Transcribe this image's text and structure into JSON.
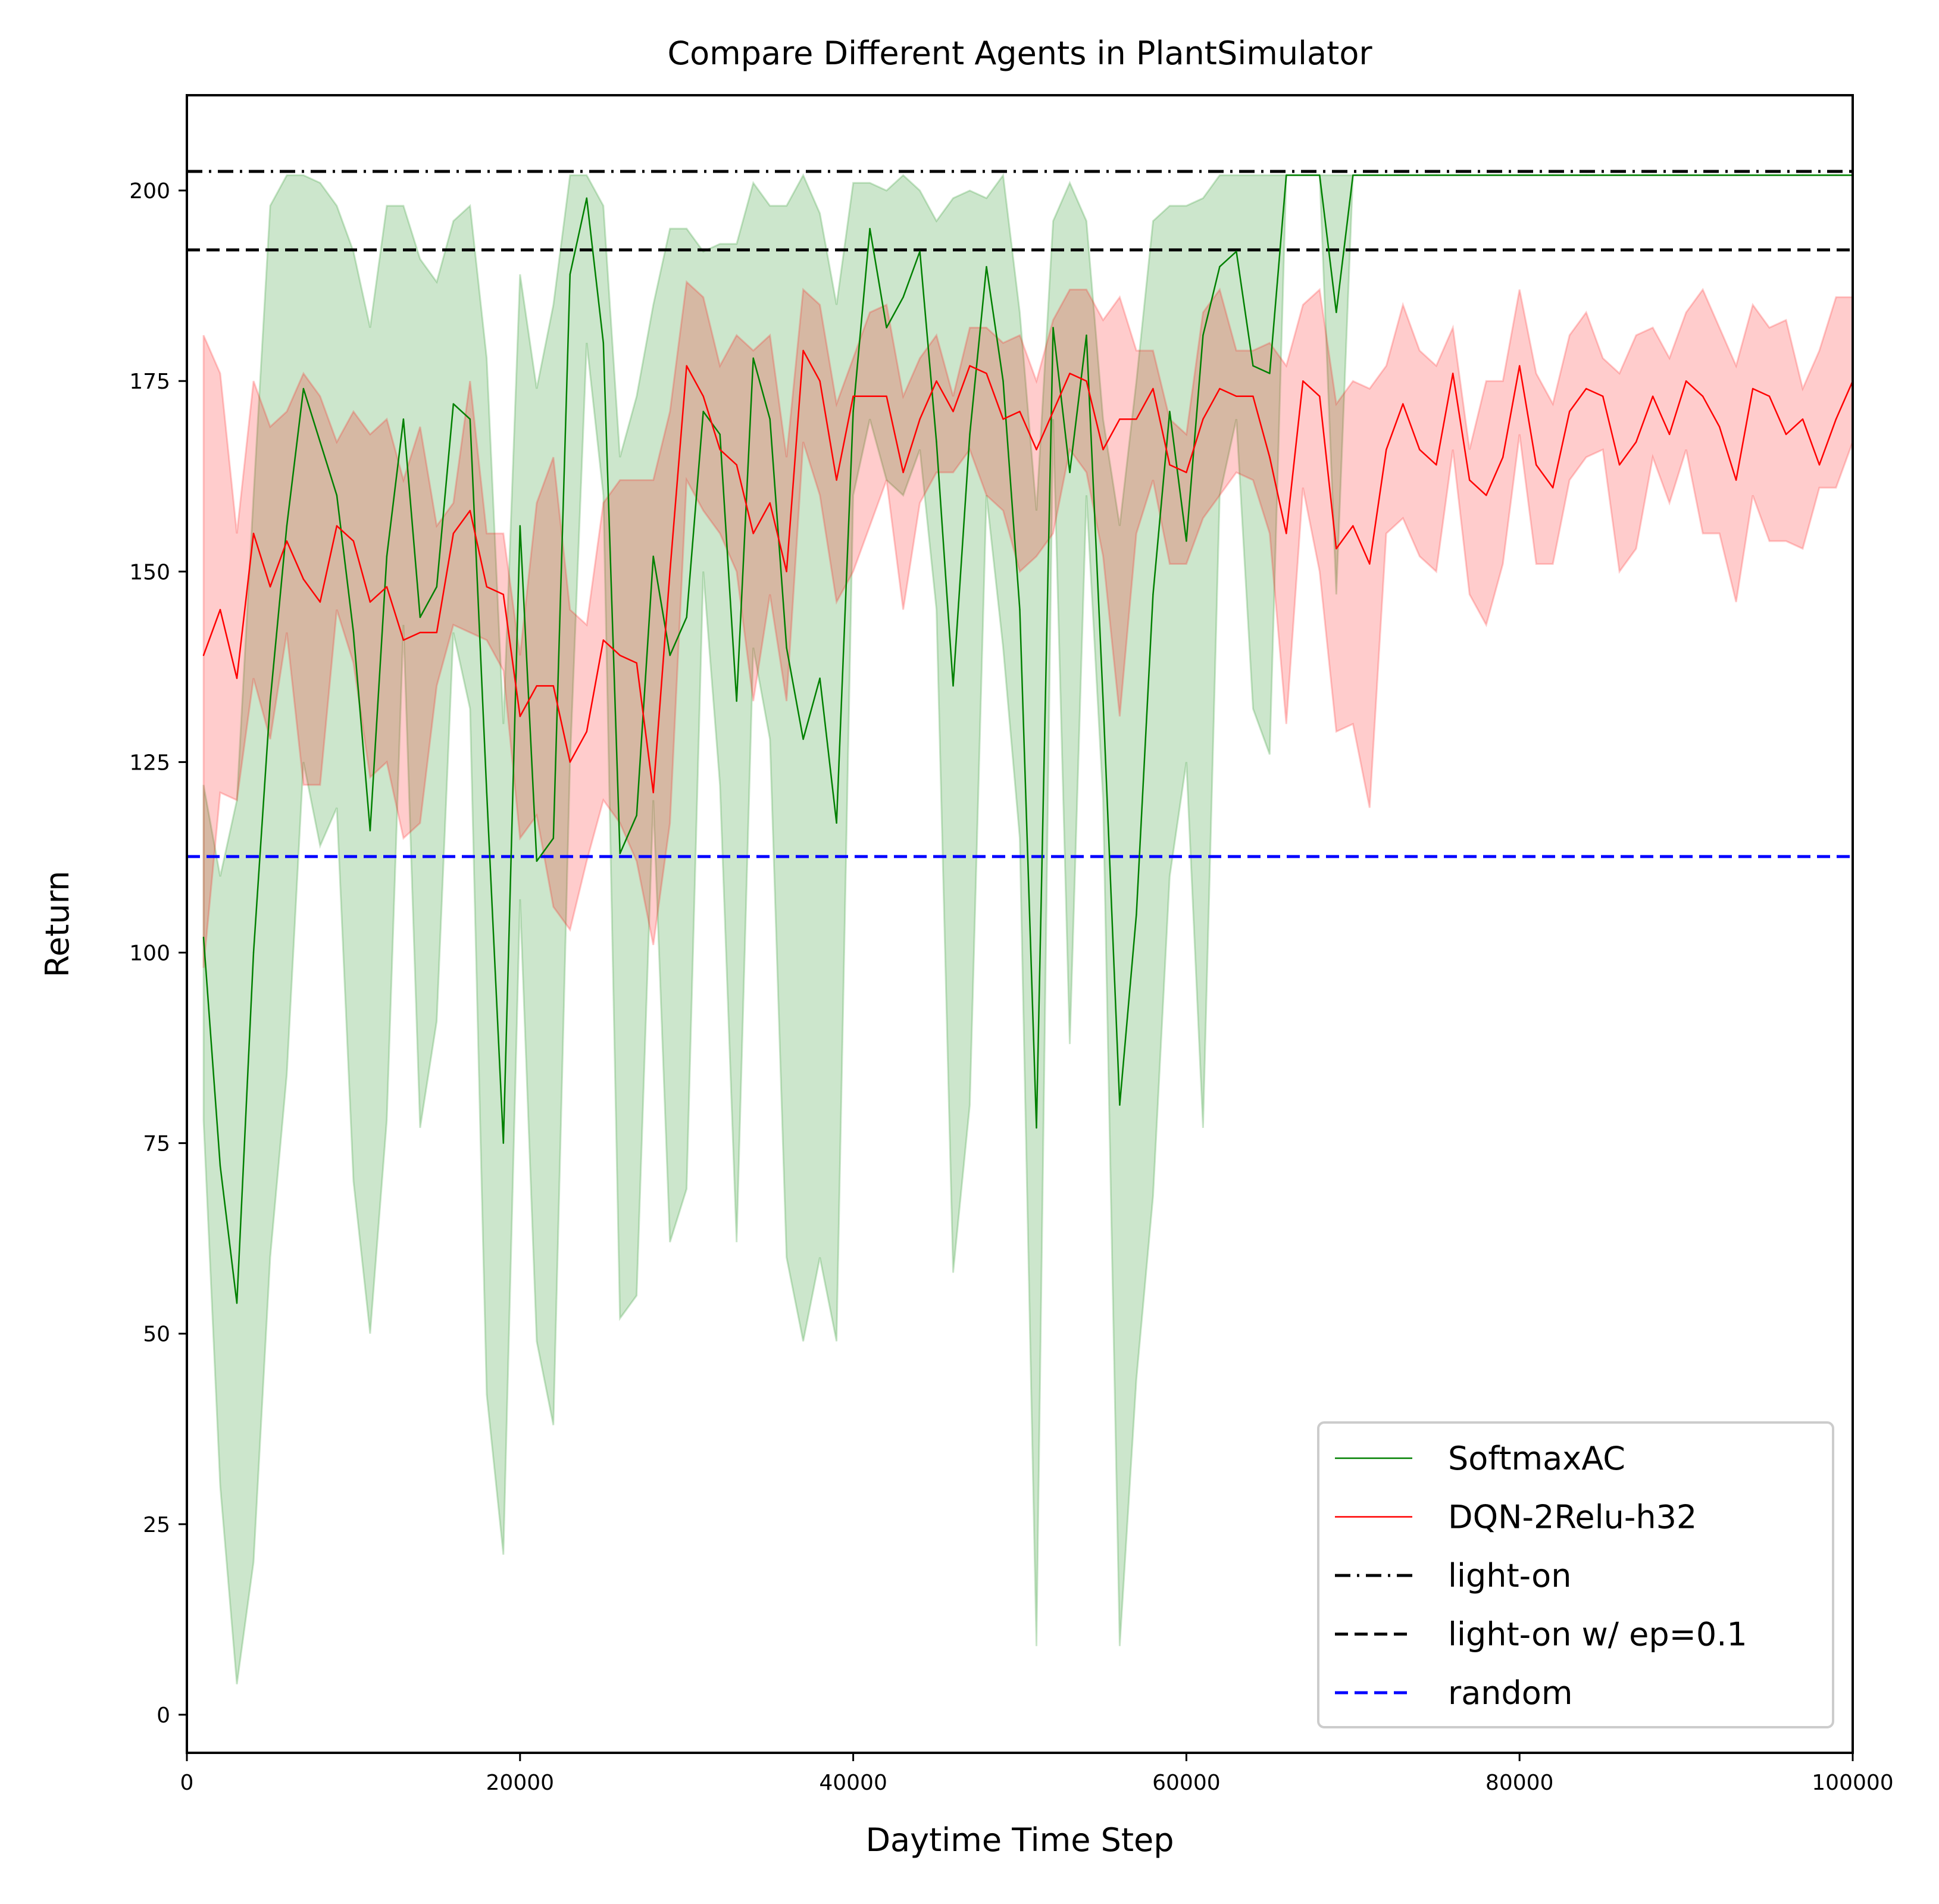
{
  "chart_data": {
    "type": "line",
    "title": "Compare Different Agents in PlantSimulator",
    "xlabel": "Daytime Time Step",
    "ylabel": "Return",
    "xlim": [
      0,
      100000
    ],
    "ylim": [
      -5,
      212.5
    ],
    "x_ticks": [
      0,
      20000,
      40000,
      60000,
      80000,
      100000
    ],
    "x_tick_labels": [
      "0",
      "20000",
      "40000",
      "60000",
      "80000",
      "100000"
    ],
    "y_ticks": [
      0,
      25,
      50,
      75,
      100,
      125,
      150,
      175,
      200
    ],
    "y_tick_labels": [
      "0",
      "25",
      "50",
      "75",
      "100",
      "125",
      "150",
      "175",
      "200"
    ],
    "grid": false,
    "legend_position": "lower-right",
    "series": [
      {
        "name": "SoftmaxAC",
        "color": "#008000",
        "band_color": "#008000",
        "x": [
          1000,
          2000,
          3000,
          4000,
          5000,
          6000,
          7000,
          8000,
          9000,
          10000,
          11000,
          12000,
          13000,
          14000,
          15000,
          16000,
          17000,
          18000,
          19000,
          20000,
          21000,
          22000,
          23000,
          24000,
          25000,
          26000,
          27000,
          28000,
          29000,
          30000,
          31000,
          32000,
          33000,
          34000,
          35000,
          36000,
          37000,
          38000,
          39000,
          40000,
          41000,
          42000,
          43000,
          44000,
          45000,
          46000,
          47000,
          48000,
          49000,
          50000,
          51000,
          52000,
          53000,
          54000,
          55000,
          56000,
          57000,
          58000,
          59000,
          60000,
          61000,
          62000,
          63000,
          64000,
          65000,
          66000,
          67000,
          68000,
          69000,
          70000,
          71000,
          72000,
          73000,
          74000,
          75000,
          76000,
          77000,
          78000,
          79000,
          80000,
          81000,
          82000,
          83000,
          84000,
          85000,
          86000,
          87000,
          88000,
          89000,
          90000,
          91000,
          92000,
          93000,
          94000,
          95000,
          96000,
          97000,
          98000,
          99000,
          100000
        ],
        "y": [
          102,
          72,
          54,
          100,
          133,
          156,
          174,
          167,
          160,
          142,
          116,
          152,
          170,
          144,
          148,
          172,
          170,
          121,
          75,
          156,
          112,
          115,
          189,
          199,
          180,
          113,
          118,
          152,
          139,
          144,
          171,
          168,
          133,
          178,
          170,
          140,
          128,
          136,
          117,
          171,
          195,
          182,
          186,
          192,
          167,
          135,
          168,
          190,
          175,
          145,
          77,
          182,
          163,
          181,
          133,
          80,
          105,
          147,
          171,
          154,
          181,
          190,
          192,
          177,
          176,
          202,
          202,
          202,
          184,
          202,
          202,
          202,
          202,
          202,
          202,
          202,
          202,
          202,
          202,
          202,
          202,
          202,
          202,
          202,
          202,
          202,
          202,
          202,
          202,
          202,
          202,
          202,
          202,
          202,
          202,
          202,
          202,
          202,
          202,
          202
        ],
        "y_low": [
          78,
          30,
          4,
          20,
          60,
          84,
          125,
          114,
          119,
          70,
          50,
          78,
          143,
          77,
          91,
          142,
          132,
          42,
          21,
          107,
          49,
          38,
          125,
          180,
          160,
          52,
          55,
          120,
          62,
          69,
          150,
          122,
          62,
          140,
          128,
          60,
          49,
          60,
          49,
          160,
          170,
          162,
          160,
          166,
          145,
          58,
          80,
          160,
          140,
          115,
          9,
          170,
          88,
          160,
          120,
          9,
          44,
          68,
          110,
          125,
          77,
          160,
          170,
          132,
          126,
          202,
          202,
          202,
          147,
          202,
          202,
          202,
          202,
          202,
          202,
          202,
          202,
          202,
          202,
          202,
          202,
          202,
          202,
          202,
          202,
          202,
          202,
          202,
          202,
          202,
          202,
          202,
          202,
          202,
          202,
          202,
          202,
          202,
          202,
          202
        ],
        "y_high": [
          122,
          110,
          120,
          160,
          198,
          202,
          202,
          201,
          198,
          192,
          182,
          198,
          198,
          191,
          188,
          196,
          198,
          178,
          130,
          189,
          174,
          185,
          202,
          202,
          198,
          165,
          173,
          185,
          195,
          195,
          192,
          193,
          193,
          201,
          198,
          198,
          202,
          197,
          185,
          201,
          201,
          200,
          202,
          200,
          196,
          199,
          200,
          199,
          202,
          184,
          158,
          196,
          201,
          196,
          170,
          156,
          175,
          196,
          198,
          198,
          199,
          202,
          202,
          202,
          202,
          202,
          202,
          202,
          202,
          202,
          202,
          202,
          202,
          202,
          202,
          202,
          202,
          202,
          202,
          202,
          202,
          202,
          202,
          202,
          202,
          202,
          202,
          202,
          202,
          202,
          202,
          202,
          202,
          202,
          202,
          202,
          202,
          202,
          202,
          202
        ]
      },
      {
        "name": "DQN-2Relu-h32",
        "color": "#ff0000",
        "band_color": "#ff0000",
        "x": [
          1000,
          2000,
          3000,
          4000,
          5000,
          6000,
          7000,
          8000,
          9000,
          10000,
          11000,
          12000,
          13000,
          14000,
          15000,
          16000,
          17000,
          18000,
          19000,
          20000,
          21000,
          22000,
          23000,
          24000,
          25000,
          26000,
          27000,
          28000,
          29000,
          30000,
          31000,
          32000,
          33000,
          34000,
          35000,
          36000,
          37000,
          38000,
          39000,
          40000,
          41000,
          42000,
          43000,
          44000,
          45000,
          46000,
          47000,
          48000,
          49000,
          50000,
          51000,
          52000,
          53000,
          54000,
          55000,
          56000,
          57000,
          58000,
          59000,
          60000,
          61000,
          62000,
          63000,
          64000,
          65000,
          66000,
          67000,
          68000,
          69000,
          70000,
          71000,
          72000,
          73000,
          74000,
          75000,
          76000,
          77000,
          78000,
          79000,
          80000,
          81000,
          82000,
          83000,
          84000,
          85000,
          86000,
          87000,
          88000,
          89000,
          90000,
          91000,
          92000,
          93000,
          94000,
          95000,
          96000,
          97000,
          98000,
          99000,
          100000
        ],
        "y": [
          139,
          145,
          136,
          155,
          148,
          154,
          149,
          146,
          156,
          154,
          146,
          148,
          141,
          142,
          142,
          155,
          158,
          148,
          147,
          131,
          135,
          135,
          125,
          129,
          141,
          139,
          138,
          121,
          150,
          177,
          173,
          166,
          164,
          155,
          159,
          150,
          179,
          175,
          162,
          173,
          173,
          173,
          163,
          170,
          175,
          171,
          177,
          176,
          170,
          171,
          166,
          171,
          176,
          175,
          166,
          170,
          170,
          174,
          164,
          163,
          170,
          174,
          173,
          173,
          165,
          155,
          175,
          173,
          153,
          156,
          151,
          166,
          172,
          166,
          164,
          176,
          162,
          160,
          165,
          177,
          164,
          161,
          171,
          174,
          173,
          164,
          167,
          173,
          168,
          175,
          173,
          169,
          162,
          174,
          173,
          168,
          170,
          164,
          170,
          175
        ],
        "y_low": [
          98,
          121,
          120,
          136,
          128,
          142,
          122,
          122,
          145,
          138,
          123,
          125,
          115,
          117,
          135,
          143,
          142,
          141,
          137,
          115,
          118,
          106,
          103,
          112,
          120,
          117,
          112,
          101,
          117,
          162,
          158,
          155,
          150,
          133,
          147,
          133,
          167,
          160,
          146,
          150,
          156,
          162,
          145,
          159,
          163,
          163,
          166,
          160,
          158,
          150,
          152,
          155,
          166,
          163,
          152,
          131,
          155,
          162,
          151,
          151,
          157,
          160,
          163,
          162,
          155,
          130,
          161,
          150,
          129,
          130,
          119,
          155,
          157,
          152,
          150,
          166,
          147,
          143,
          151,
          168,
          151,
          151,
          162,
          165,
          166,
          150,
          153,
          165,
          159,
          166,
          155,
          155,
          146,
          160,
          154,
          154,
          153,
          161,
          161,
          167
        ],
        "y_high": [
          181,
          176,
          155,
          175,
          169,
          171,
          176,
          173,
          167,
          171,
          168,
          170,
          162,
          169,
          156,
          159,
          175,
          155,
          155,
          139,
          159,
          165,
          145,
          143,
          159,
          162,
          162,
          162,
          171,
          188,
          186,
          177,
          181,
          179,
          181,
          165,
          187,
          185,
          172,
          178,
          184,
          185,
          173,
          178,
          181,
          173,
          182,
          182,
          180,
          181,
          175,
          183,
          187,
          187,
          183,
          186,
          179,
          179,
          170,
          168,
          184,
          187,
          179,
          179,
          180,
          177,
          185,
          187,
          172,
          175,
          174,
          177,
          185,
          179,
          177,
          182,
          166,
          175,
          175,
          187,
          176,
          172,
          181,
          184,
          178,
          176,
          181,
          182,
          178,
          184,
          187,
          182,
          177,
          185,
          182,
          183,
          174,
          179,
          186,
          186
        ]
      }
    ],
    "reference_lines": [
      {
        "name": "light-on",
        "y": 202.5,
        "color": "#000000",
        "style": "dashdot"
      },
      {
        "name": "light-on w/ ep=0.1",
        "y": 192.2,
        "color": "#000000",
        "style": "dashed"
      },
      {
        "name": "random",
        "y": 112.6,
        "color": "#0000ff",
        "style": "dashed"
      }
    ]
  }
}
